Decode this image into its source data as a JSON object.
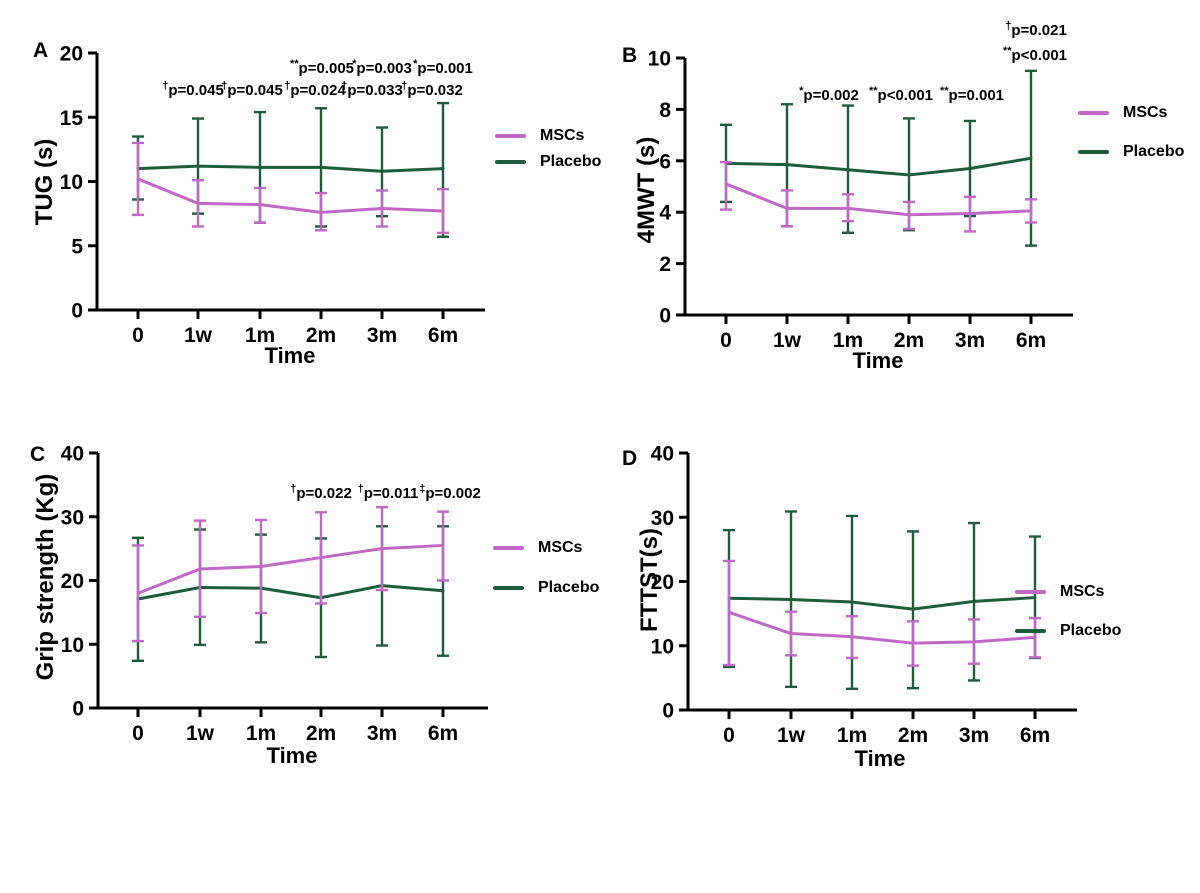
{
  "figure": {
    "background": "#ffffff"
  },
  "chart_data": [
    {
      "type": "line",
      "panel": "A",
      "ylabel": "TUG (s)",
      "xlabel": "Time",
      "categories": [
        "0",
        "1w",
        "1m",
        "2m",
        "3m",
        "6m"
      ],
      "ylim": [
        0,
        20
      ],
      "yticks": [
        0,
        5,
        10,
        15,
        20
      ],
      "grid": false,
      "legend_position": "right",
      "series": [
        {
          "name": "MSCs",
          "color": "#C168C6",
          "values": [
            10.2,
            8.3,
            8.2,
            7.6,
            7.9,
            7.7
          ],
          "err_lo": [
            7.4,
            6.5,
            6.8,
            6.2,
            6.5,
            6.0
          ],
          "err_hi": [
            13.0,
            10.1,
            9.5,
            9.1,
            9.3,
            9.4
          ]
        },
        {
          "name": "Placebo",
          "color": "#1D5C3C",
          "values": [
            11.0,
            11.2,
            11.1,
            11.1,
            10.8,
            11.0
          ],
          "err_lo": [
            8.6,
            7.5,
            6.8,
            6.5,
            7.3,
            5.7
          ],
          "err_hi": [
            13.5,
            14.9,
            15.4,
            15.7,
            14.2,
            16.1
          ]
        }
      ],
      "annotations": [
        {
          "sup": "**",
          "text": "p=0.005",
          "x": 282,
          "y": 43
        },
        {
          "sup": "*",
          "text": "p=0.003",
          "x": 342,
          "y": 43
        },
        {
          "sup": "*",
          "text": "p=0.001",
          "x": 403,
          "y": 43
        },
        {
          "sup": "†",
          "text": "p=0.045",
          "x": 153,
          "y": 65
        },
        {
          "sup": "†",
          "text": "p=0.045",
          "x": 212,
          "y": 65
        },
        {
          "sup": "†",
          "text": "p=0.024",
          "x": 275,
          "y": 65
        },
        {
          "sup": "†",
          "text": "p=0.033",
          "x": 332,
          "y": 65
        },
        {
          "sup": "†",
          "text": "p=0.032",
          "x": 392,
          "y": 65
        }
      ],
      "layout": {
        "axisX": 57,
        "top": 23,
        "baseline": 280,
        "xs": [
          98,
          158,
          220,
          281,
          342,
          403
        ],
        "xend": 445
      }
    },
    {
      "type": "line",
      "panel": "B",
      "ylabel": "4MWT (s)",
      "xlabel": "Time",
      "categories": [
        "0",
        "1w",
        "1m",
        "2m",
        "3m",
        "6m"
      ],
      "ylim": [
        0,
        10
      ],
      "yticks": [
        0,
        2,
        4,
        6,
        8,
        10
      ],
      "grid": false,
      "legend_position": "right",
      "series": [
        {
          "name": "MSCs",
          "color": "#C168C6",
          "values": [
            5.1,
            4.15,
            4.15,
            3.9,
            3.95,
            4.05
          ],
          "err_lo": [
            4.1,
            3.45,
            3.65,
            3.35,
            3.25,
            3.6
          ],
          "err_hi": [
            5.95,
            4.85,
            4.7,
            4.4,
            4.6,
            4.5
          ]
        },
        {
          "name": "Placebo",
          "color": "#1D5C3C",
          "values": [
            5.9,
            5.85,
            5.65,
            5.45,
            5.7,
            6.1
          ],
          "err_lo": [
            4.4,
            3.45,
            3.2,
            3.3,
            3.85,
            2.7
          ],
          "err_hi": [
            7.4,
            8.2,
            8.15,
            7.65,
            7.55,
            9.5
          ]
        }
      ],
      "annotations": [
        {
          "sup": "*",
          "text": "p=0.002",
          "x": 201,
          "y": 82
        },
        {
          "sup": "**",
          "text": "p<0.001",
          "x": 273,
          "y": 82
        },
        {
          "sup": "**",
          "text": "p=0.001",
          "x": 344,
          "y": 82
        },
        {
          "sup": "†",
          "text": "p=0.021",
          "x": 408,
          "y": 17
        },
        {
          "sup": "**",
          "text": "p<0.001",
          "x": 407,
          "y": 42
        }
      ],
      "layout": {
        "axisX": 57,
        "top": 40,
        "baseline": 297,
        "xs": [
          98,
          159,
          220,
          281,
          342,
          403
        ],
        "xend": 445
      }
    },
    {
      "type": "line",
      "panel": "C",
      "ylabel": "Grip strength (Kg)",
      "xlabel": "Time",
      "categories": [
        "0",
        "1w",
        "1m",
        "2m",
        "3m",
        "6m"
      ],
      "ylim": [
        0,
        40
      ],
      "yticks": [
        0,
        10,
        20,
        30,
        40
      ],
      "grid": false,
      "legend_position": "right",
      "series": [
        {
          "name": "MSCs",
          "color": "#C168C6",
          "values": [
            18.0,
            21.8,
            22.2,
            23.6,
            25.0,
            25.5
          ],
          "err_lo": [
            10.5,
            14.3,
            14.9,
            16.4,
            18.5,
            20.0
          ],
          "err_hi": [
            25.5,
            29.4,
            29.5,
            30.7,
            31.5,
            30.8
          ]
        },
        {
          "name": "Placebo",
          "color": "#1D5C3C",
          "values": [
            17.1,
            18.9,
            18.8,
            17.3,
            19.2,
            18.4
          ],
          "err_lo": [
            7.4,
            9.9,
            10.3,
            8.0,
            9.8,
            8.2
          ],
          "err_hi": [
            26.7,
            28.0,
            27.2,
            26.6,
            28.5,
            28.5
          ]
        }
      ],
      "annotations": [
        {
          "sup": "†",
          "text": "p=0.022",
          "x": 281,
          "y": 70
        },
        {
          "sup": "†",
          "text": "p=0.011",
          "x": 348,
          "y": 70
        },
        {
          "sup": "‡",
          "text": "p=0.002",
          "x": 410,
          "y": 70
        }
      ],
      "layout": {
        "axisX": 58,
        "top": 25,
        "baseline": 280,
        "xs": [
          98,
          160,
          221,
          281,
          342,
          403
        ],
        "xend": 448
      }
    },
    {
      "type": "line",
      "panel": "D",
      "ylabel": "FTTST(s)",
      "xlabel": "Time",
      "categories": [
        "0",
        "1w",
        "1m",
        "2m",
        "3m",
        "6m"
      ],
      "ylim": [
        0,
        40
      ],
      "yticks": [
        0,
        10,
        20,
        30,
        40
      ],
      "grid": false,
      "legend_position": "right",
      "series": [
        {
          "name": "MSCs",
          "color": "#C168C6",
          "values": [
            15.2,
            11.9,
            11.4,
            10.4,
            10.6,
            11.3
          ],
          "err_lo": [
            7.0,
            8.5,
            8.1,
            6.9,
            7.2,
            8.2
          ],
          "err_hi": [
            23.2,
            15.3,
            14.6,
            13.8,
            14.1,
            14.3
          ]
        },
        {
          "name": "Placebo",
          "color": "#1D5C3C",
          "values": [
            17.4,
            17.2,
            16.8,
            15.7,
            16.9,
            17.5
          ],
          "err_lo": [
            6.7,
            3.6,
            3.3,
            3.4,
            4.6,
            8.1
          ],
          "err_hi": [
            28.0,
            30.9,
            30.2,
            27.8,
            29.1,
            27.0
          ]
        }
      ],
      "annotations": [],
      "layout": {
        "axisX": 60,
        "top": 25,
        "baseline": 282,
        "xs": [
          101,
          163,
          224,
          285,
          346,
          407
        ],
        "xend": 449
      }
    }
  ]
}
